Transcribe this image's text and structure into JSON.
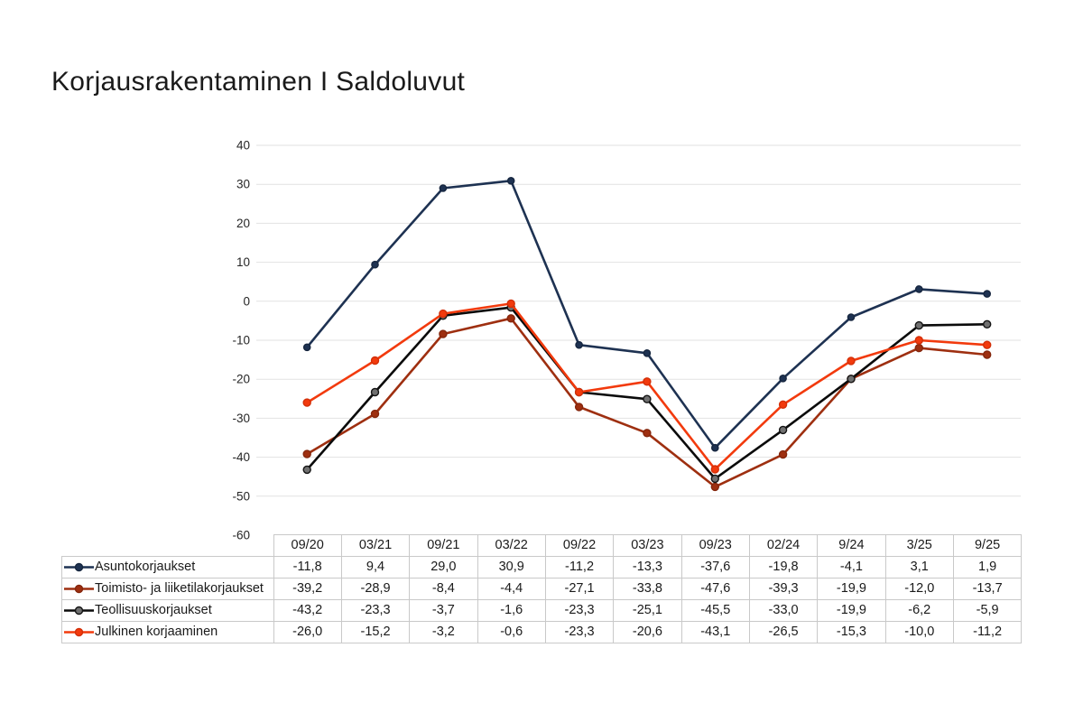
{
  "page": {
    "background": "#ffffff"
  },
  "chart_data": {
    "type": "line",
    "title": "Korjausrakentaminen I Saldoluvut",
    "xlabel": "",
    "ylabel": "",
    "ylim": [
      -60,
      40
    ],
    "yticks": [
      40,
      30,
      20,
      10,
      0,
      -10,
      -20,
      -30,
      -40,
      -50,
      -60
    ],
    "grid": "horizontal",
    "gridline_color": "#e2e2e2",
    "tick_label_color": "#262626",
    "table_border_color": "#c9c9c9",
    "legend_position": "table-left",
    "categories": [
      "09/20",
      "03/21",
      "09/21",
      "03/22",
      "09/22",
      "03/23",
      "09/23",
      "02/24",
      "9/24",
      "3/25",
      "9/25"
    ],
    "series": [
      {
        "name": "Asuntokorjaukset",
        "color": "#1e3252",
        "marker_fill": "#1e3252",
        "marker_stroke": "#16263f",
        "marker_r": 3.6,
        "values": [
          -11.8,
          9.4,
          29.0,
          30.9,
          -11.2,
          -13.3,
          -37.6,
          -19.8,
          -4.1,
          3.1,
          1.9
        ],
        "labels": [
          "-11,8",
          "9,4",
          "29,0",
          "30,9",
          "-11,2",
          "-13,3",
          "-37,6",
          "-19,8",
          "-4,1",
          "3,1",
          "1,9"
        ]
      },
      {
        "name": "Toimisto- ja liiketilakorjaukset",
        "color": "#9e2f10",
        "marker_fill": "#9e2f10",
        "marker_stroke": "#84260c",
        "marker_r": 4,
        "values": [
          -39.2,
          -28.9,
          -8.4,
          -4.4,
          -27.1,
          -33.8,
          -47.6,
          -39.3,
          -19.9,
          -12.0,
          -13.7
        ],
        "labels": [
          "-39,2",
          "-28,9",
          "-8,4",
          "-4,4",
          "-27,1",
          "-33,8",
          "-47,6",
          "-39,3",
          "-19,9",
          "-12,0",
          "-13,7"
        ]
      },
      {
        "name": "Teollisuuskorjaukset",
        "color": "#0b0b0b",
        "marker_fill": "#707070",
        "marker_stroke": "#141414",
        "marker_r": 4,
        "values": [
          -43.2,
          -23.3,
          -3.7,
          -1.6,
          -23.3,
          -25.1,
          -45.5,
          -33.0,
          -19.9,
          -6.2,
          -5.9
        ],
        "labels": [
          "-43,2",
          "-23,3",
          "-3,7",
          "-1,6",
          "-23,3",
          "-25,1",
          "-45,5",
          "-33,0",
          "-19,9",
          "-6,2",
          "-5,9"
        ]
      },
      {
        "name": "Julkinen korjaaminen",
        "color": "#f23a0d",
        "marker_fill": "#f23a0d",
        "marker_stroke": "#d32f08",
        "marker_r": 4,
        "values": [
          -26.0,
          -15.2,
          -3.2,
          -0.6,
          -23.3,
          -20.6,
          -43.1,
          -26.5,
          -15.3,
          -10.0,
          -11.2
        ],
        "labels": [
          "-26,0",
          "-15,2",
          "-3,2",
          "-0,6",
          "-23,3",
          "-20,6",
          "-43,1",
          "-26,5",
          "-15,3",
          "-10,0",
          "-11,2"
        ]
      }
    ]
  }
}
